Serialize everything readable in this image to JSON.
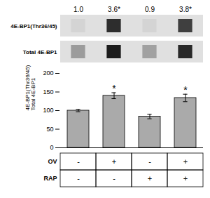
{
  "chart_data": {
    "type": "bar",
    "categories": [
      null,
      null,
      null,
      null
    ],
    "values": [
      100,
      140,
      84,
      134
    ],
    "errors": [
      3,
      8,
      6,
      10
    ],
    "color": "#aaaaaa",
    "ylabel": "4E-BP1(Thr36/45) /\nTotal 4E-BP1",
    "ylim": [
      0,
      200
    ],
    "yticks": [
      0,
      50,
      100,
      150,
      200
    ],
    "grid": false,
    "tick_labels": "y",
    "value_annotations": [
      null,
      "*",
      null,
      "*"
    ],
    "lane_labels": [
      "1.0",
      "3.6*",
      "0.9",
      "3.8*"
    ],
    "blots": [
      {
        "name": "4E-BP1(Thr36/45)",
        "intensities": [
          0.05,
          0.8,
          0.05,
          0.72
        ]
      },
      {
        "name": "Total 4E-BP1",
        "intensities": [
          0.3,
          0.88,
          0.28,
          0.82
        ]
      }
    ],
    "table": [
      {
        "name": "OV",
        "values": [
          "-",
          "+",
          "-",
          "+"
        ]
      },
      {
        "name": "RAP",
        "values": [
          "-",
          "-",
          "+",
          "+"
        ]
      }
    ]
  }
}
